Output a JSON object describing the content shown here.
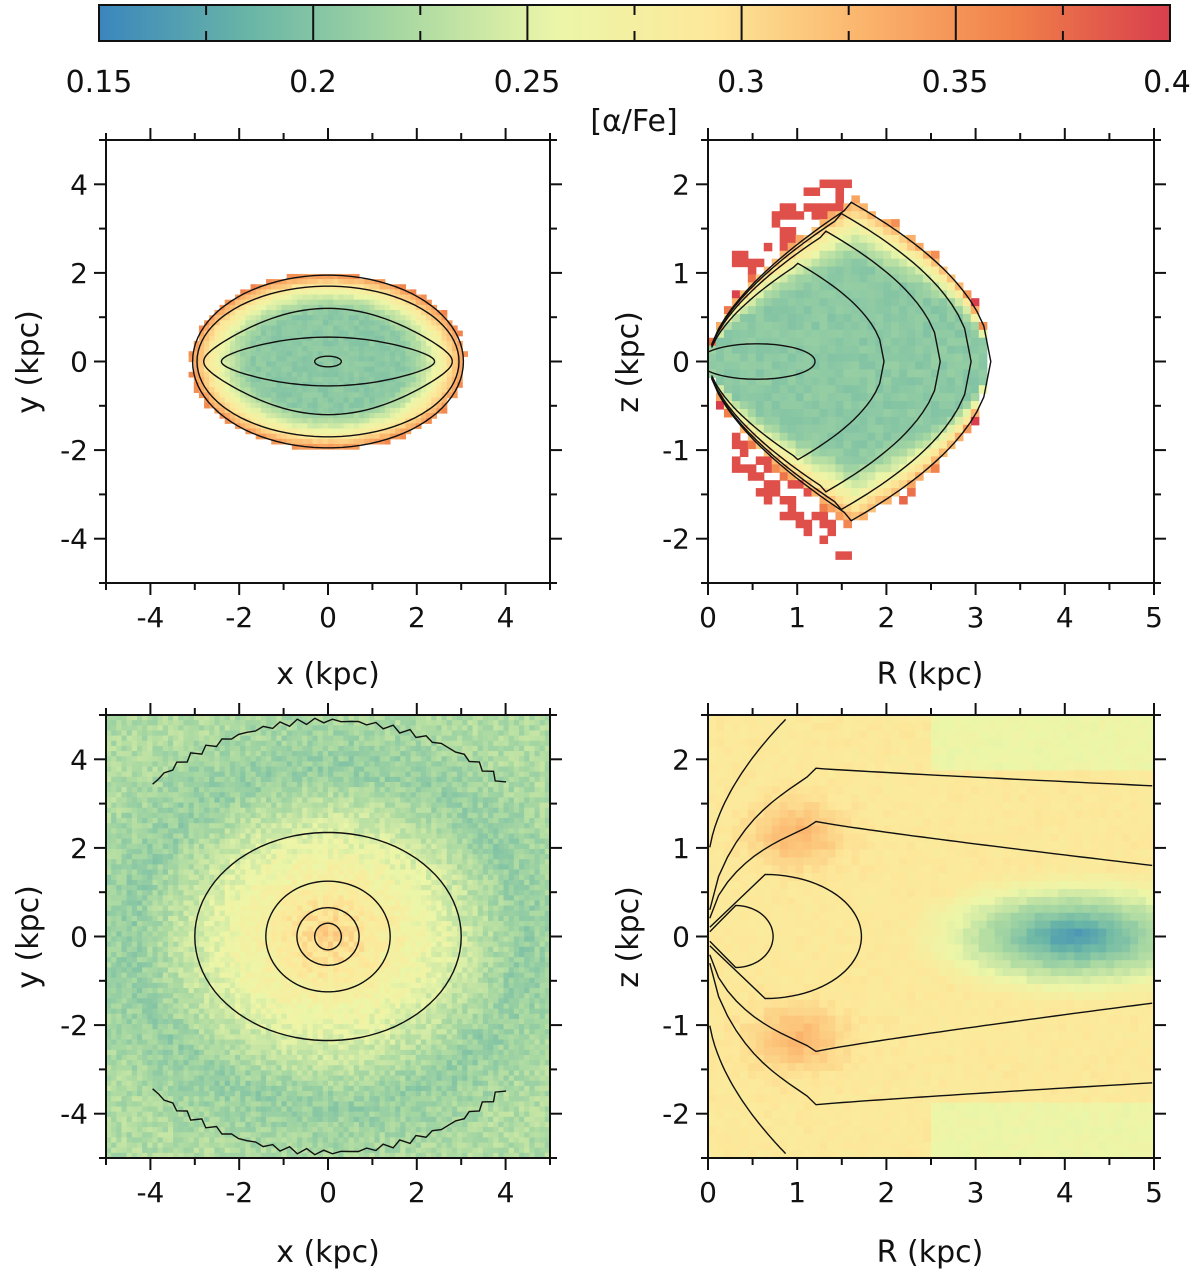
{
  "colorbar": {
    "label": "[α/Fe]",
    "min": 0.15,
    "max": 0.4,
    "ticks": [
      "0.15",
      "0.2",
      "0.25",
      "0.3",
      "0.35",
      "0.4"
    ],
    "stops": [
      "#3a86bd",
      "#6ab6a6",
      "#aad9a2",
      "#ecf6a8",
      "#fde89a",
      "#fbb46c",
      "#f07f4a",
      "#d83e4c"
    ]
  },
  "chart_data": [
    {
      "type": "heatmap",
      "panel": "top-left",
      "title": "",
      "xlabel": "x (kpc)",
      "ylabel": "y (kpc)",
      "xlim": [
        -5,
        5
      ],
      "ylim": [
        -5,
        5
      ],
      "xticks": [
        "-4",
        "-2",
        "0",
        "2",
        "4"
      ],
      "yticks": [
        "-4",
        "-2",
        "0",
        "2",
        "4"
      ],
      "description_values": {
        "center_alpha_fe": 0.2,
        "outer_alpha_fe": 0.33,
        "extent_x": 3.1,
        "extent_y": 2.0
      },
      "contours": [
        {
          "kind": "ellipse",
          "cx": 0,
          "cy": 0,
          "rx": 3.05,
          "ry": 1.95
        },
        {
          "kind": "ellipse",
          "cx": 0,
          "cy": 0,
          "rx": 2.95,
          "ry": 1.7
        },
        {
          "kind": "peanut",
          "cx": 0,
          "cy": 0,
          "rx": 2.8,
          "ry": 1.2,
          "pinch": 0.45
        },
        {
          "kind": "peanut",
          "cx": 0,
          "cy": 0,
          "rx": 2.4,
          "ry": 0.55,
          "pinch": 0.3
        },
        {
          "kind": "ellipse",
          "cx": 0,
          "cy": 0,
          "rx": 0.3,
          "ry": 0.12
        }
      ]
    },
    {
      "type": "heatmap",
      "panel": "top-right",
      "title": "",
      "xlabel": "R (kpc)",
      "ylabel": "z (kpc)",
      "xlim": [
        0,
        5
      ],
      "ylim": [
        -2.5,
        2.5
      ],
      "xticks": [
        "0",
        "1",
        "2",
        "3",
        "4",
        "5"
      ],
      "yticks": [
        "-2",
        "-1",
        "0",
        "1",
        "2"
      ],
      "description_values": {
        "center_alpha_fe": 0.2,
        "edge_alpha_fe": 0.38
      },
      "contours": [
        {
          "kind": "wedge",
          "scale": 1.0
        },
        {
          "kind": "wedge",
          "scale": 0.93
        },
        {
          "kind": "wedge",
          "scale": 0.82
        },
        {
          "kind": "wedge",
          "scale": 0.62
        },
        {
          "kind": "ellipse",
          "cx": 0.55,
          "cy": 0,
          "rx": 0.65,
          "ry": 0.2
        }
      ]
    },
    {
      "type": "heatmap",
      "panel": "bottom-left",
      "title": "",
      "xlabel": "x (kpc)",
      "ylabel": "y (kpc)",
      "xlim": [
        -5,
        5
      ],
      "ylim": [
        -5,
        5
      ],
      "xticks": [
        "-4",
        "-2",
        "0",
        "2",
        "4"
      ],
      "yticks": [
        "-4",
        "-2",
        "0",
        "2",
        "4"
      ],
      "description_values": {
        "center_alpha_fe": 0.3,
        "ring_alpha_fe": 0.2,
        "ring_radius": 4.5
      },
      "contours": [
        {
          "kind": "ellipse",
          "cx": 0,
          "cy": 0,
          "rx": 3.0,
          "ry": 2.35
        },
        {
          "kind": "ellipse",
          "cx": 0,
          "cy": 0,
          "rx": 1.4,
          "ry": 1.25
        },
        {
          "kind": "ellipse",
          "cx": 0,
          "cy": 0,
          "rx": 0.7,
          "ry": 0.65
        },
        {
          "kind": "ellipse",
          "cx": 0,
          "cy": 0,
          "rx": 0.3,
          "ry": 0.3
        },
        {
          "kind": "arc",
          "cx": 0,
          "cy": 0,
          "r": 5.6,
          "side": "top"
        },
        {
          "kind": "arc",
          "cx": 0,
          "cy": 0,
          "r": 5.6,
          "side": "bottom"
        }
      ]
    },
    {
      "type": "heatmap",
      "panel": "bottom-right",
      "title": "",
      "xlabel": "R (kpc)",
      "ylabel": "z (kpc)",
      "xlim": [
        0,
        5
      ],
      "ylim": [
        -2.5,
        2.5
      ],
      "xticks": [
        "0",
        "1",
        "2",
        "3",
        "4",
        "5"
      ],
      "yticks": [
        "-2",
        "-1",
        "0",
        "1",
        "2"
      ],
      "description_values": {
        "inner_alpha_fe": 0.3,
        "outer_midplane_alpha_fe": 0.16,
        "min_location_R": 4.1
      },
      "contours": [
        {
          "kind": "loop",
          "cx": 0.45,
          "rx": 0.35,
          "ry": 0.35
        },
        {
          "kind": "loop",
          "cx": 1.0,
          "rx": 0.9,
          "ry": 0.7
        },
        {
          "kind": "flare",
          "z0": 1.3,
          "zend": 0.8
        },
        {
          "kind": "flare",
          "z0": 1.9,
          "zend": 1.7
        },
        {
          "kind": "flare",
          "z0": -1.3,
          "zend": -0.75
        },
        {
          "kind": "flare",
          "z0": -1.9,
          "zend": -1.65
        },
        {
          "kind": "cap",
          "top": true
        },
        {
          "kind": "cap",
          "top": false
        }
      ]
    }
  ]
}
